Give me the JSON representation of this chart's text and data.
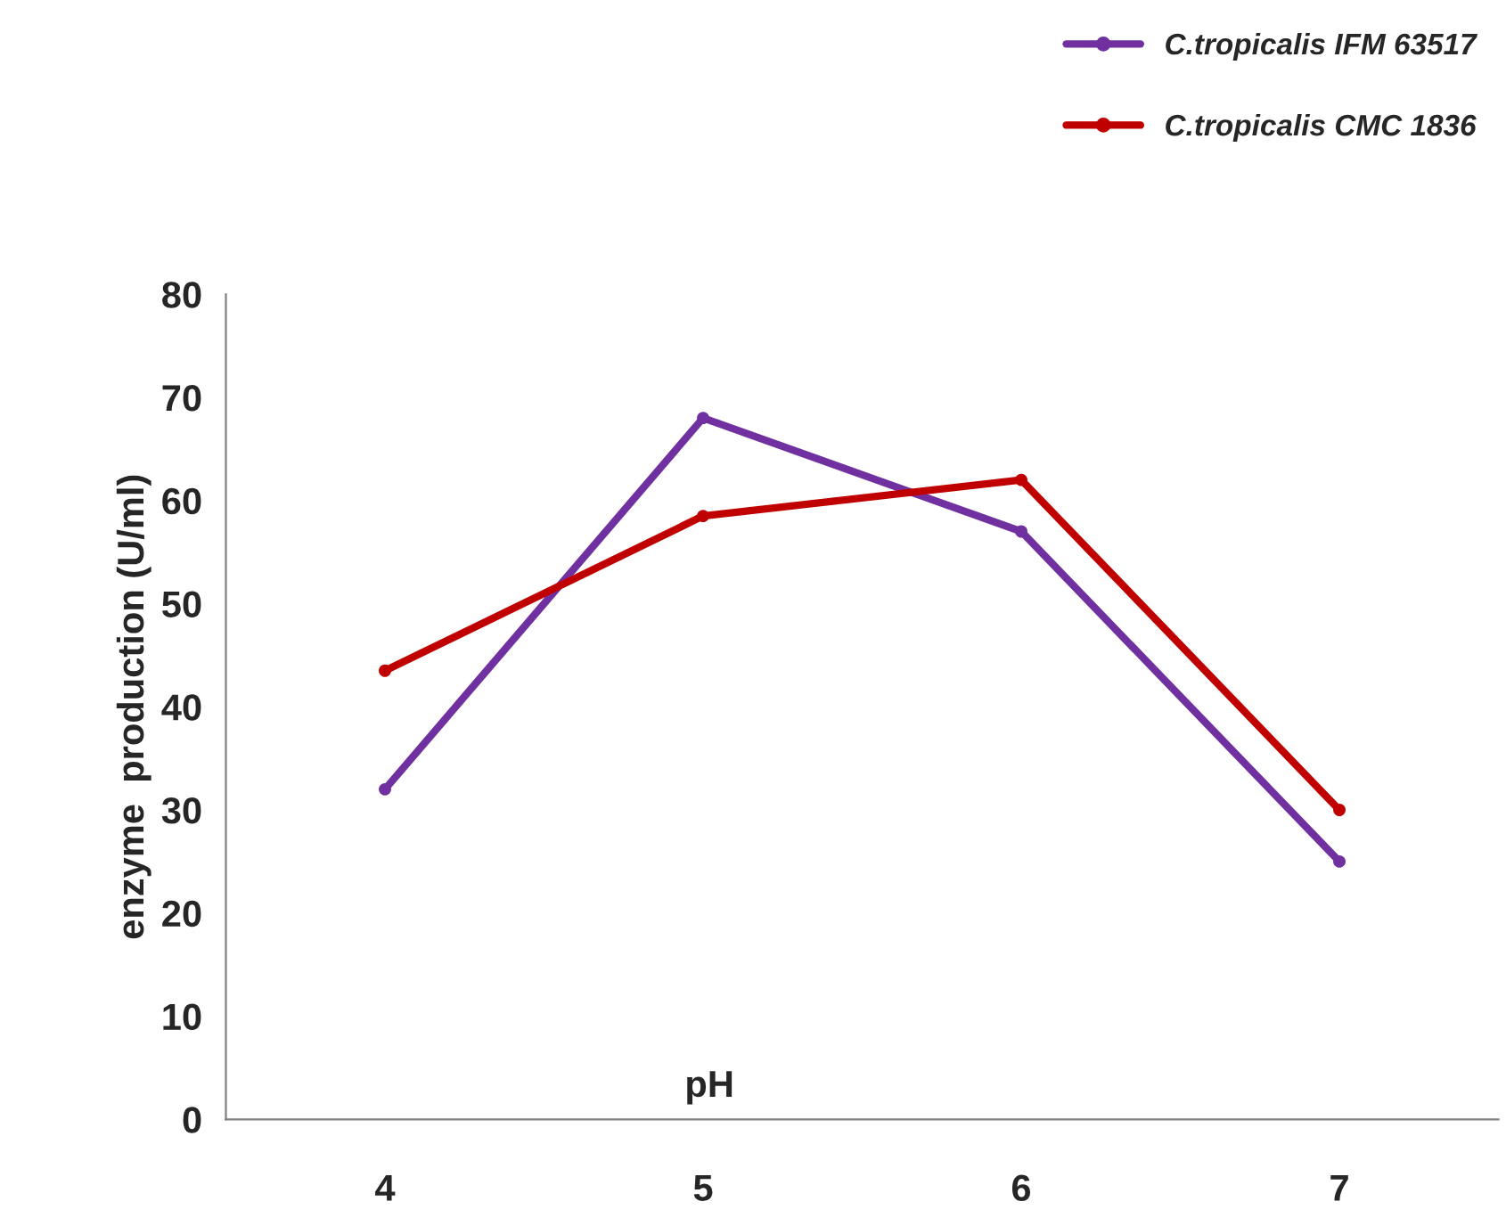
{
  "chart_data": {
    "type": "line",
    "xlabel": "pH",
    "ylabel": "enzyme  production (U/ml)",
    "categories": [
      "4",
      "5",
      "6",
      "7"
    ],
    "series": [
      {
        "name": "C.tropicalis IFM 63517",
        "color": "#7030a0",
        "values": [
          32,
          68,
          57,
          25
        ]
      },
      {
        "name": "C.tropicalis CMC 1836",
        "color": "#c00000",
        "values": [
          43.5,
          58.5,
          62,
          30
        ]
      }
    ],
    "ylim": [
      0,
      80
    ],
    "yticks": [
      0,
      10,
      20,
      30,
      40,
      50,
      60,
      70,
      80
    ],
    "marker": "circle",
    "line_style": "solid",
    "grid": false,
    "legend": "top right"
  }
}
